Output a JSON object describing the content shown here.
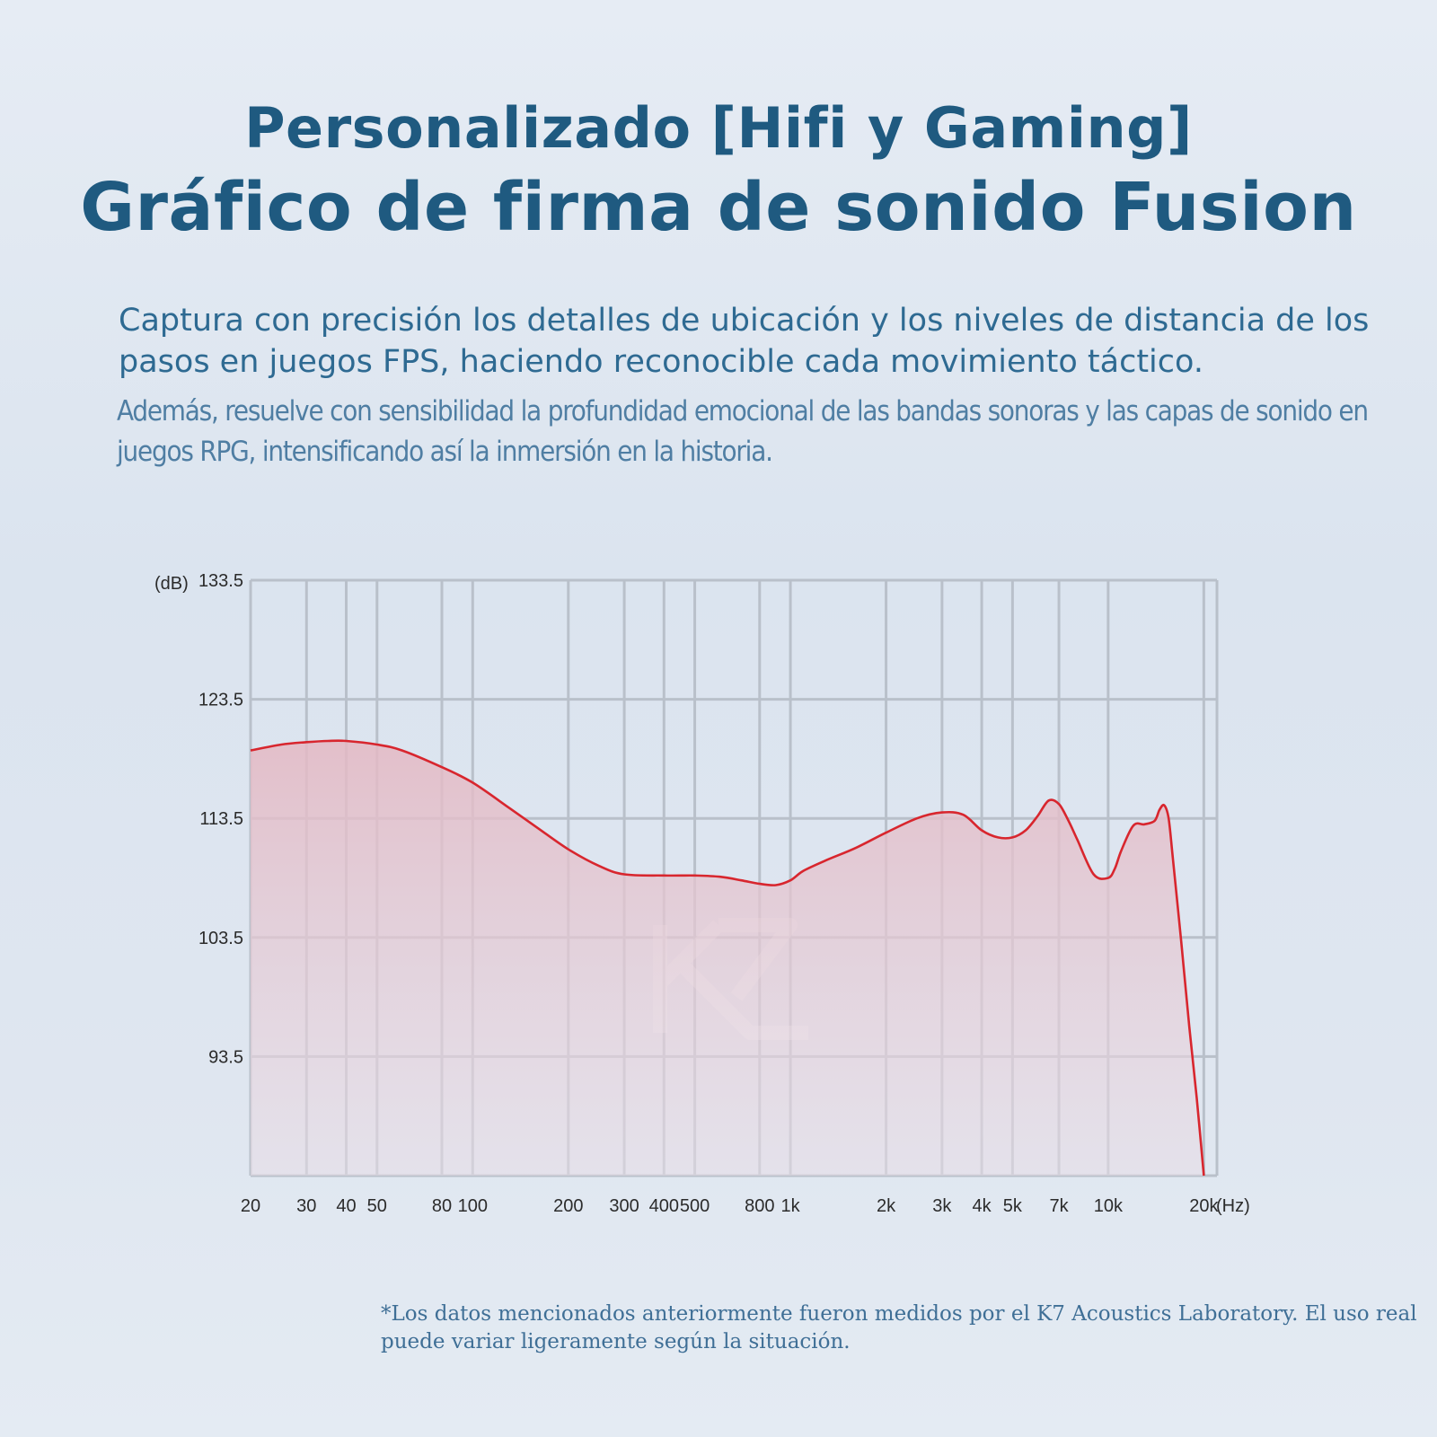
{
  "header": {
    "title_line1": "Personalizado [Hifi y Gaming]",
    "title_line2": "Gráfico de firma de sonido Fusion"
  },
  "description": {
    "line1": "Captura con precisión los detalles de ubicación y los niveles de distancia de los pasos en juegos FPS, haciendo reconocible cada movimiento táctico.",
    "line2": "Además, resuelve con sensibilidad la profundidad emocional de las bandas sonoras y las capas de sonido en juegos RPG, intensificando así la inmersión en la historia."
  },
  "footnote": "*Los datos mencionados anteriormente fueron medidos por el K7 Acoustics Laboratory. El uso real puede variar ligeramente según la situación.",
  "colors": {
    "title": "#1f5a80",
    "curve": "#d8262e",
    "fill": "#e8c2cc",
    "grid": "#b9c0ca"
  },
  "chart_data": {
    "type": "line",
    "xscale": "log",
    "xlim": [
      20,
      22000
    ],
    "ylim": [
      83.5,
      133.5
    ],
    "ylabel": "(dB)",
    "xunit": "(Hz)",
    "grid": true,
    "yticks": [
      133.5,
      123.5,
      113.5,
      103.5,
      93.5
    ],
    "ytick_labels": [
      "133.5",
      "123.5",
      "113.5",
      "103.5",
      "93.5"
    ],
    "xticks": [
      20,
      30,
      40,
      50,
      80,
      100,
      200,
      300,
      400,
      500,
      800,
      1000,
      2000,
      3000,
      4000,
      5000,
      7000,
      10000,
      20000
    ],
    "xtick_labels": [
      "20",
      "30",
      "40",
      "50",
      "80",
      "100",
      "200",
      "300",
      "400",
      "500",
      "800",
      "1k",
      "2k",
      "3k",
      "4k",
      "5k",
      "7k",
      "10k",
      "20k"
    ],
    "series": [
      {
        "x": [
          20,
          25,
          30,
          35,
          40,
          50,
          60,
          80,
          100,
          130,
          160,
          200,
          250,
          300,
          400,
          500,
          600,
          700,
          800,
          900,
          1000,
          1100,
          1300,
          1600,
          2000,
          2500,
          3000,
          3500,
          4000,
          4500,
          5000,
          5500,
          6000,
          6500,
          7000,
          7500,
          8000,
          9000,
          10000,
          10500,
          11000,
          12000,
          13000,
          14000,
          14500,
          15000,
          15500,
          16000,
          17000,
          18000,
          19000,
          20000
        ],
        "y": [
          119.2,
          119.7,
          119.9,
          120.0,
          120.0,
          119.7,
          119.2,
          117.8,
          116.5,
          114.4,
          112.7,
          110.9,
          109.5,
          108.8,
          108.7,
          108.7,
          108.6,
          108.3,
          108.0,
          107.9,
          108.3,
          109.1,
          110.0,
          111.0,
          112.3,
          113.5,
          114.0,
          113.8,
          112.5,
          111.9,
          111.9,
          112.5,
          113.7,
          115.0,
          114.7,
          113.3,
          111.7,
          108.8,
          108.5,
          109.3,
          110.8,
          112.9,
          113.0,
          113.3,
          114.2,
          114.6,
          113.5,
          110.0,
          103.0,
          96.0,
          90.0,
          83.5
        ]
      }
    ]
  }
}
